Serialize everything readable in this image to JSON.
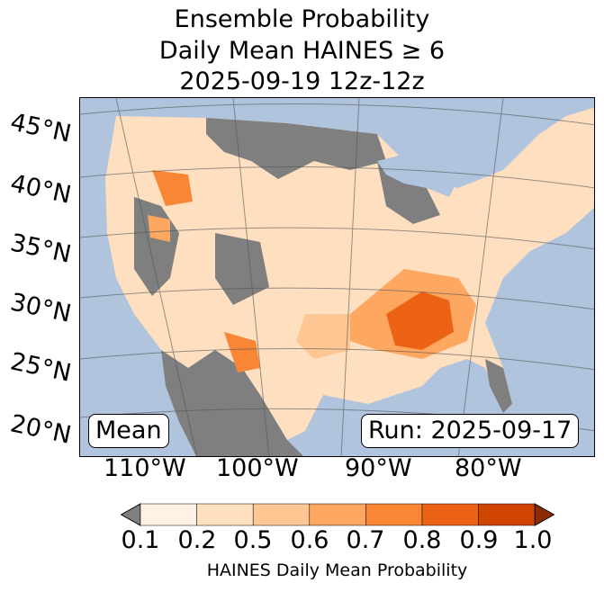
{
  "title": {
    "line1": "Ensemble Probability",
    "line2": "Daily Mean HAINES ≥ 6",
    "line3": "2025-09-19 12z-12z"
  },
  "map": {
    "lat_labels": [
      "45°N",
      "40°N",
      "35°N",
      "30°N",
      "25°N",
      "20°N"
    ],
    "lon_labels": [
      "110°W",
      "100°W",
      "90°W",
      "80°W"
    ],
    "stat_label": "Mean",
    "run_label": "Run: 2025-09-17",
    "colors": {
      "ocean": "#b0c4de",
      "below": "#7f7f7f",
      "levels": [
        "#fff1e3",
        "#fedfc0",
        "#fdc692",
        "#fda761",
        "#f98635",
        "#ec6315",
        "#d04501"
      ],
      "over": "#8f2a03"
    }
  },
  "colorbar": {
    "ticks": [
      "0.1",
      "0.2",
      "0.5",
      "0.6",
      "0.7",
      "0.8",
      "0.9",
      "1.0"
    ],
    "label": "HAINES Daily Mean Probability"
  }
}
